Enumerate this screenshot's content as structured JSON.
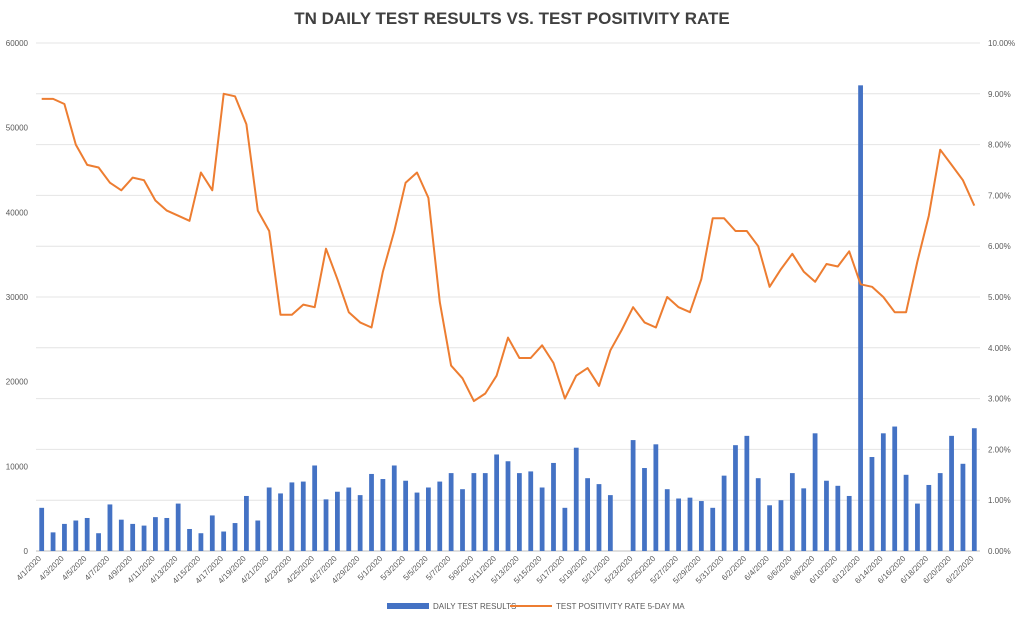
{
  "chart_data": {
    "type": "bar",
    "title": "TN DAILY TEST RESULTS VS. TEST POSITIVITY RATE",
    "x": [
      "4/1/2020",
      "4/2/2020",
      "4/3/2020",
      "4/4/2020",
      "4/5/2020",
      "4/6/2020",
      "4/7/2020",
      "4/8/2020",
      "4/9/2020",
      "4/10/2020",
      "4/11/2020",
      "4/12/2020",
      "4/13/2020",
      "4/14/2020",
      "4/15/2020",
      "4/16/2020",
      "4/17/2020",
      "4/18/2020",
      "4/19/2020",
      "4/20/2020",
      "4/21/2020",
      "4/22/2020",
      "4/23/2020",
      "4/24/2020",
      "4/25/2020",
      "4/26/2020",
      "4/27/2020",
      "4/28/2020",
      "4/29/2020",
      "4/30/2020",
      "5/1/2020",
      "5/2/2020",
      "5/3/2020",
      "5/4/2020",
      "5/5/2020",
      "5/6/2020",
      "5/7/2020",
      "5/8/2020",
      "5/9/2020",
      "5/10/2020",
      "5/11/2020",
      "5/12/2020",
      "5/13/2020",
      "5/14/2020",
      "5/15/2020",
      "5/16/2020",
      "5/17/2020",
      "5/18/2020",
      "5/19/2020",
      "5/20/2020",
      "5/21/2020",
      "5/22/2020",
      "5/23/2020",
      "5/24/2020",
      "5/25/2020",
      "5/26/2020",
      "5/27/2020",
      "5/28/2020",
      "5/29/2020",
      "5/30/2020",
      "5/31/2020",
      "6/1/2020",
      "6/2/2020",
      "6/3/2020",
      "6/4/2020",
      "6/5/2020",
      "6/6/2020",
      "6/7/2020",
      "6/8/2020",
      "6/9/2020",
      "6/10/2020",
      "6/11/2020",
      "6/12/2020",
      "6/13/2020",
      "6/14/2020",
      "6/15/2020",
      "6/16/2020",
      "6/17/2020",
      "6/18/2020",
      "6/19/2020",
      "6/20/2020",
      "6/21/2020",
      "6/22/2020"
    ],
    "x_tick_labels": [
      "4/1/2020",
      "4/3/2020",
      "4/5/2020",
      "4/7/2020",
      "4/9/2020",
      "4/11/2020",
      "4/13/2020",
      "4/15/2020",
      "4/17/2020",
      "4/19/2020",
      "4/21/2020",
      "4/23/2020",
      "4/25/2020",
      "4/27/2020",
      "4/29/2020",
      "5/1/2020",
      "5/3/2020",
      "5/5/2020",
      "5/7/2020",
      "5/9/2020",
      "5/11/2020",
      "5/13/2020",
      "5/15/2020",
      "5/17/2020",
      "5/19/2020",
      "5/21/2020",
      "5/23/2020",
      "5/25/2020",
      "5/27/2020",
      "5/29/2020",
      "5/31/2020",
      "6/2/2020",
      "6/4/2020",
      "6/6/2020",
      "6/8/2020",
      "6/10/2020",
      "6/12/2020",
      "6/14/2020",
      "6/16/2020",
      "6/18/2020",
      "6/20/2020",
      "6/22/2020"
    ],
    "series": [
      {
        "name": "DAILY TEST RESULTS",
        "type": "bar",
        "axis": "left",
        "color": "#4472C4",
        "values": [
          5100,
          2200,
          3200,
          3600,
          3900,
          2100,
          5500,
          3700,
          3200,
          3000,
          4000,
          3900,
          5600,
          2600,
          2100,
          4200,
          2300,
          3300,
          6500,
          3600,
          7500,
          6800,
          8100,
          8200,
          10100,
          6100,
          7000,
          7500,
          6600,
          9100,
          8500,
          10100,
          8300,
          6900,
          7500,
          8200,
          9200,
          7300,
          9200,
          9200,
          11400,
          10600,
          9200,
          9400,
          7500,
          10400,
          5100,
          12200,
          8600,
          7900,
          6600,
          0,
          13100,
          9800,
          12600,
          7300,
          6200,
          6300,
          5900,
          5100,
          8900,
          12500,
          13600,
          8600,
          5400,
          6000,
          9200,
          7400,
          13900,
          8300,
          7700,
          6500,
          55000,
          11100,
          13900,
          14700,
          9000,
          5600,
          7800,
          9200,
          13600,
          10300,
          14500
        ]
      },
      {
        "name": "TEST POSITIVITY RATE 5-DAY MA",
        "type": "line",
        "axis": "right",
        "color": "#ED7D31",
        "values": [
          8.9,
          8.9,
          8.8,
          8.0,
          7.6,
          7.55,
          7.25,
          7.1,
          7.35,
          7.3,
          6.9,
          6.7,
          6.6,
          6.5,
          7.45,
          7.1,
          9.0,
          8.95,
          8.4,
          6.7,
          6.3,
          4.65,
          4.65,
          4.85,
          4.8,
          5.95,
          5.35,
          4.7,
          4.5,
          4.4,
          5.5,
          6.3,
          7.25,
          7.45,
          6.95,
          4.9,
          3.65,
          3.4,
          2.95,
          3.1,
          3.45,
          4.2,
          3.8,
          3.8,
          4.05,
          3.7,
          3.0,
          3.45,
          3.6,
          3.25,
          3.95,
          4.35,
          4.8,
          4.5,
          4.4,
          5.0,
          4.8,
          4.7,
          5.35,
          6.55,
          6.55,
          6.3,
          6.3,
          6.0,
          5.2,
          5.55,
          5.85,
          5.5,
          5.3,
          5.65,
          5.6,
          5.9,
          5.25,
          5.2,
          5.0,
          4.7,
          4.7,
          5.7,
          6.6,
          7.9,
          7.6,
          7.3,
          6.8
        ]
      }
    ],
    "ylim_left": [
      0,
      60000
    ],
    "yticks_left": [
      "0",
      "10000",
      "20000",
      "30000",
      "40000",
      "50000",
      "60000"
    ],
    "ylim_right": [
      0,
      10
    ],
    "yticks_right": [
      "0.00%",
      "1.00%",
      "2.00%",
      "3.00%",
      "4.00%",
      "5.00%",
      "6.00%",
      "7.00%",
      "8.00%",
      "9.00%",
      "10.00%"
    ],
    "grid": "horizontal",
    "legend_position": "bottom"
  }
}
